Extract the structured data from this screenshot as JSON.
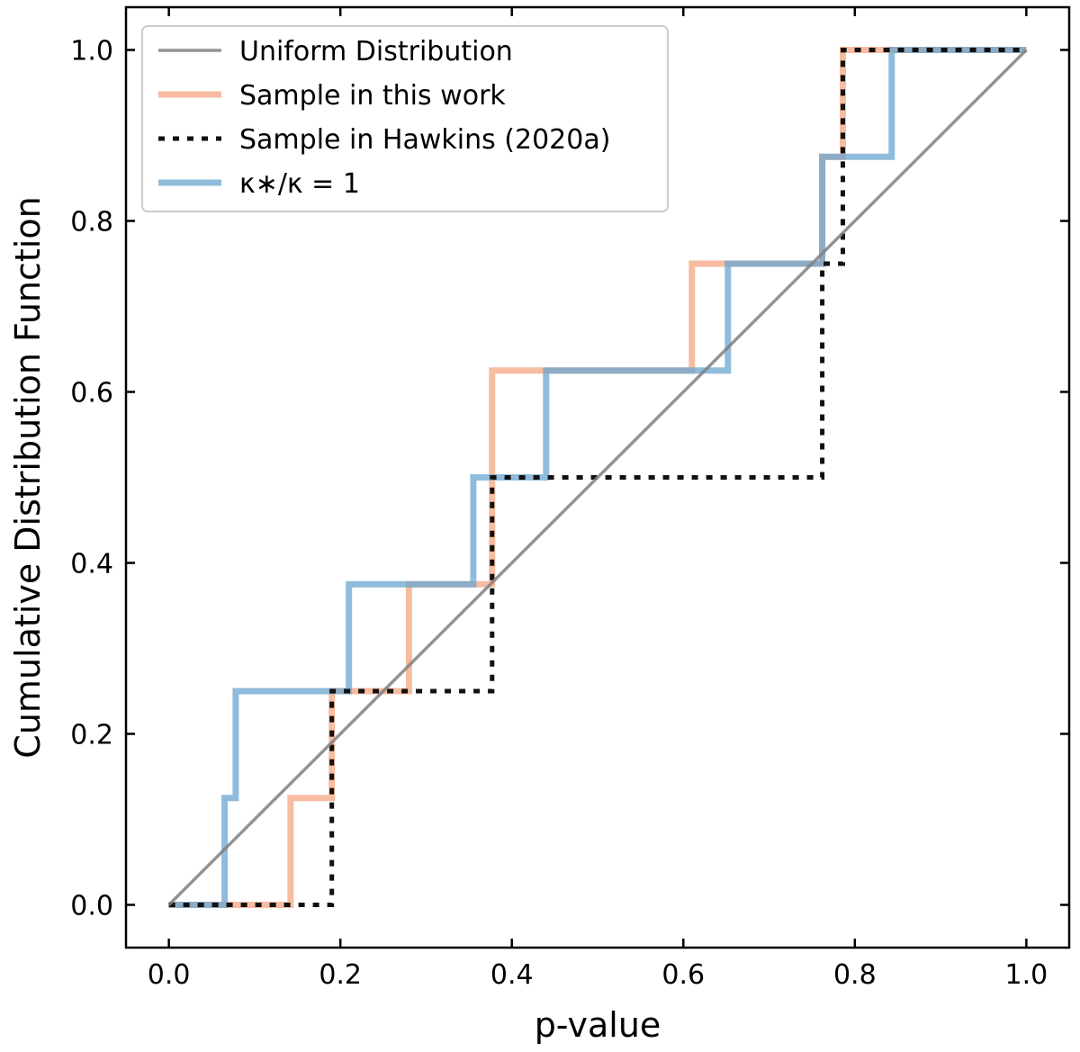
{
  "chart_data": {
    "type": "line",
    "title": "",
    "xlabel": "p-value",
    "ylabel": "Cumulative Distribution Function",
    "xlim": [
      -0.05,
      1.05
    ],
    "ylim": [
      -0.05,
      1.05
    ],
    "xticks": [
      "0.0",
      "0.2",
      "0.4",
      "0.6",
      "0.8",
      "1.0"
    ],
    "yticks": [
      "0.0",
      "0.2",
      "0.4",
      "0.6",
      "0.8",
      "1.0"
    ],
    "legend_position": "top-left",
    "series": [
      {
        "name": "Uniform Distribution",
        "style": "solid-thin",
        "color": "#808080",
        "x": [
          0.0,
          1.0
        ],
        "y": [
          0.0,
          1.0
        ]
      },
      {
        "name": "Sample in this work",
        "style": "step",
        "color": "#f4a582",
        "x": [
          0.0,
          0.142,
          0.142,
          0.19,
          0.19,
          0.28,
          0.28,
          0.377,
          0.377,
          0.61,
          0.61,
          0.762,
          0.762,
          0.786,
          0.786,
          1.0
        ],
        "y": [
          0.0,
          0.0,
          0.125,
          0.125,
          0.25,
          0.25,
          0.375,
          0.375,
          0.625,
          0.625,
          0.75,
          0.75,
          0.875,
          0.875,
          1.0,
          1.0
        ]
      },
      {
        "name": "Sample in Hawkins (2020a)",
        "style": "dotted",
        "color": "#111111",
        "x": [
          0.0,
          0.19,
          0.19,
          0.377,
          0.377,
          0.762,
          0.762,
          0.786,
          0.786,
          1.0
        ],
        "y": [
          0.0,
          0.0,
          0.25,
          0.25,
          0.5,
          0.5,
          0.75,
          0.75,
          1.0,
          1.0
        ]
      },
      {
        "name": "κ∗/κ = 1",
        "style": "step",
        "color": "#6aa6d0",
        "x": [
          0.0,
          0.065,
          0.065,
          0.078,
          0.078,
          0.21,
          0.21,
          0.355,
          0.355,
          0.44,
          0.44,
          0.652,
          0.652,
          0.762,
          0.762,
          0.843,
          0.843,
          1.0
        ],
        "y": [
          0.0,
          0.0,
          0.125,
          0.125,
          0.25,
          0.25,
          0.375,
          0.375,
          0.5,
          0.5,
          0.625,
          0.625,
          0.75,
          0.75,
          0.875,
          0.875,
          1.0,
          1.0
        ]
      }
    ]
  }
}
